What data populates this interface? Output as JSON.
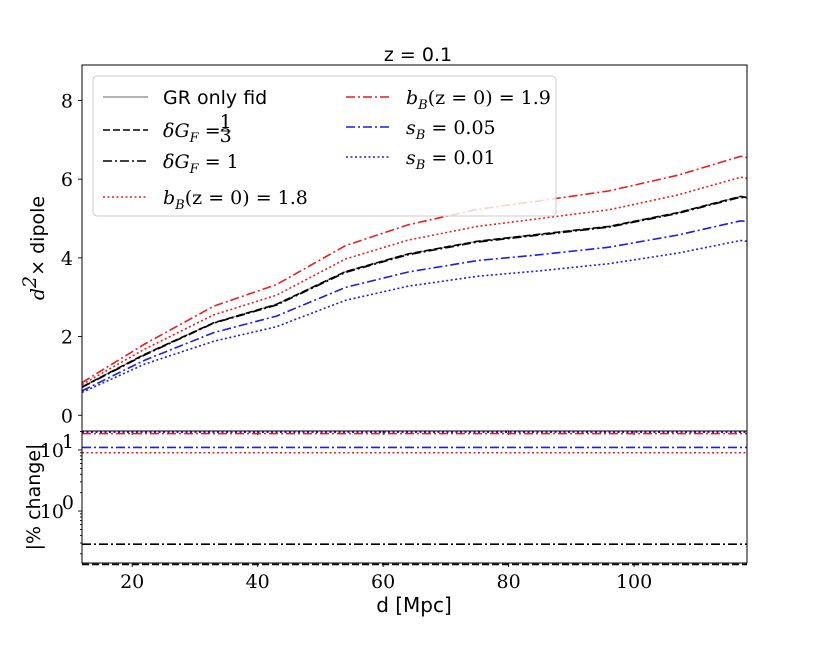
{
  "chart_data": [
    {
      "type": "line",
      "title": "z = 0.1",
      "xlabel": "",
      "ylabel": "d²× dipole",
      "ylabel_math": "d",
      "ylabel_sup": "2",
      "ylabel_text": "× dipole",
      "xlim": [
        12,
        118
      ],
      "ylim": [
        -0.4,
        8.9
      ],
      "yticks": [
        0,
        2,
        4,
        6,
        8
      ],
      "ytick_labels": [
        "0",
        "2",
        "4",
        "6",
        "8"
      ],
      "x": [
        12,
        22,
        33,
        43,
        54,
        64,
        75,
        85,
        96,
        107,
        117,
        118
      ],
      "series": [
        {
          "name": "GR only fid",
          "color": "#999999",
          "dash": "solid",
          "values": [
            0.72,
            1.55,
            2.35,
            2.82,
            3.65,
            4.1,
            4.42,
            4.6,
            4.8,
            5.15,
            5.56,
            5.53
          ]
        },
        {
          "name": "δG_F = 1/3",
          "color": "#000000",
          "dash": "dashed",
          "values": [
            0.72,
            1.55,
            2.35,
            2.82,
            3.65,
            4.1,
            4.42,
            4.6,
            4.8,
            5.15,
            5.56,
            5.53
          ]
        },
        {
          "name": "δG_F = 1",
          "color": "#000000",
          "dash": "dashdot",
          "values": [
            0.71,
            1.53,
            2.34,
            2.8,
            3.63,
            4.08,
            4.4,
            4.58,
            4.78,
            5.13,
            5.54,
            5.51
          ]
        },
        {
          "name": "b_B(z = 0) = 1.8",
          "color": "#ee1c1c",
          "dash": "dotted",
          "values": [
            0.78,
            1.68,
            2.55,
            3.05,
            3.97,
            4.45,
            4.8,
            5.0,
            5.22,
            5.6,
            6.05,
            6.02
          ]
        },
        {
          "name": "b_B(z = 0) = 1.9",
          "color": "#ee1c1c",
          "dash": "dashdot",
          "values": [
            0.83,
            1.81,
            2.77,
            3.32,
            4.31,
            4.84,
            5.23,
            5.45,
            5.7,
            6.1,
            6.58,
            6.55
          ]
        },
        {
          "name": "s_B = 0.05",
          "color": "#1c1cee",
          "dash": "dashdot",
          "values": [
            0.62,
            1.4,
            2.1,
            2.52,
            3.25,
            3.64,
            3.93,
            4.08,
            4.27,
            4.58,
            4.94,
            4.92
          ]
        },
        {
          "name": "s_B = 0.01",
          "color": "#1c1cee",
          "dash": "dotted",
          "values": [
            0.58,
            1.3,
            1.88,
            2.25,
            2.92,
            3.28,
            3.53,
            3.67,
            3.85,
            4.12,
            4.44,
            4.42
          ]
        }
      ],
      "legend": {
        "placement": "upper-left",
        "entries": [
          {
            "label": "GR only fid"
          },
          {
            "label_pre": "δG",
            "label_sub": "F",
            "label_post": " = ",
            "frac_num": "1",
            "frac_den": "3"
          },
          {
            "label_pre": "δG",
            "label_sub": "F",
            "label_post": " = 1"
          },
          {
            "label_pre": "b",
            "label_sub": "B",
            "label_post": "(z = 0) = 1.8"
          },
          {
            "label_pre": "b",
            "label_sub": "B",
            "label_post": "(z = 0) = 1.9"
          },
          {
            "label_pre": "s",
            "label_sub": "B",
            "label_post": " = 0.05"
          },
          {
            "label_pre": "s",
            "label_sub": "B",
            "label_post": " = 0.01"
          }
        ]
      }
    },
    {
      "type": "line",
      "title": "",
      "xlabel": "d [Mpc]",
      "ylabel": "|% change|",
      "yscale": "log",
      "xlim": [
        12,
        118
      ],
      "ylim_log10": [
        -0.85,
        1.31
      ],
      "xticks": [
        20,
        40,
        60,
        80,
        100
      ],
      "xtick_labels": [
        "20",
        "40",
        "60",
        "80",
        "100"
      ],
      "yticks_log10": [
        0,
        1
      ],
      "ytick_base": "10",
      "ytick_exps": [
        "0",
        "1"
      ],
      "series": [
        {
          "name": "δG_F = 1/3",
          "color": "#000000",
          "dash": "dashed",
          "value": 0.134
        },
        {
          "name": "δG_F = 1",
          "color": "#000000",
          "dash": "dashdot",
          "value": 0.287
        },
        {
          "name": "b_B(z = 0) = 1.8",
          "color": "#ee1c1c",
          "dash": "dotted",
          "value": 9.0
        },
        {
          "name": "b_B(z = 0) = 1.9",
          "color": "#ee1c1c",
          "dash": "dashdot",
          "value": 18.5
        },
        {
          "name": "s_B = 0.05",
          "color": "#1c1cee",
          "dash": "dashdot",
          "value": 11.0
        },
        {
          "name": "s_B = 0.01",
          "color": "#1c1cee",
          "dash": "dotted",
          "value": 19.5
        }
      ]
    }
  ]
}
